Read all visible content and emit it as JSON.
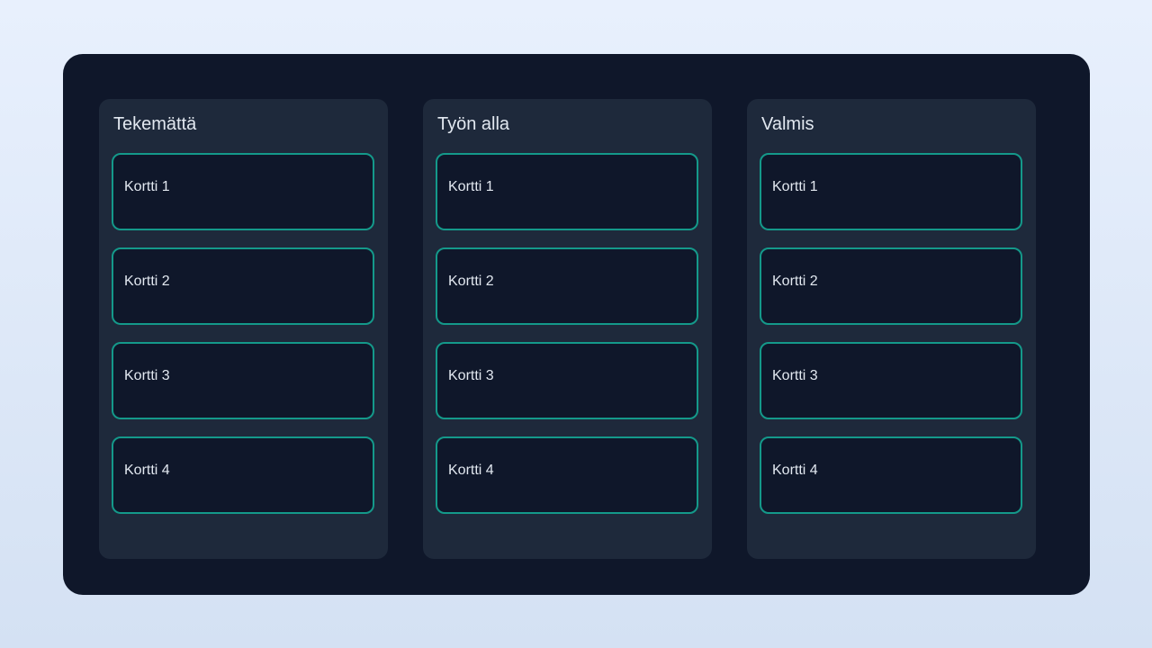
{
  "columns": [
    {
      "title": "Tekemättä",
      "cards": [
        "Kortti 1",
        "Kortti 2",
        "Kortti 3",
        "Kortti 4"
      ]
    },
    {
      "title": "Työn alla",
      "cards": [
        "Kortti 1",
        "Kortti 2",
        "Kortti 3",
        "Kortti 4"
      ]
    },
    {
      "title": "Valmis",
      "cards": [
        "Kortti 1",
        "Kortti 2",
        "Kortti 3",
        "Kortti 4"
      ]
    }
  ],
  "colors": {
    "board": "#0f172a",
    "column": "#1e293b",
    "card_border": "#14998a"
  }
}
